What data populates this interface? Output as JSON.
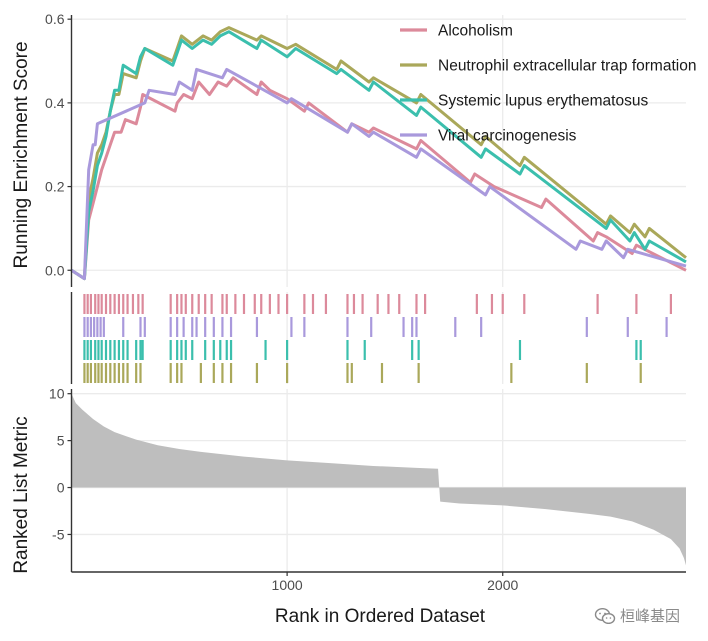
{
  "chart_data": {
    "type": "line",
    "title": "",
    "xlabel": "Rank in Ordered Dataset",
    "xlim": [
      0,
      2850
    ],
    "xticks": [
      1000,
      2000
    ],
    "top_panel": {
      "ylabel": "Running Enrichment Score",
      "ylim": [
        -0.04,
        0.61
      ],
      "yticks": [
        0.0,
        0.2,
        0.4,
        0.6
      ],
      "ytick_labels": [
        "0.0",
        "0.2",
        "0.4",
        "0.6"
      ],
      "legend_position": "top-right",
      "series": [
        {
          "name": "Alcoholism",
          "color": "#dc8a9b",
          "points": [
            [
              0,
              0
            ],
            [
              60,
              -0.02
            ],
            [
              80,
              0.12
            ],
            [
              100,
              0.16
            ],
            [
              120,
              0.2
            ],
            [
              140,
              0.24
            ],
            [
              160,
              0.27
            ],
            [
              180,
              0.3
            ],
            [
              200,
              0.33
            ],
            [
              230,
              0.33
            ],
            [
              250,
              0.36
            ],
            [
              300,
              0.35
            ],
            [
              320,
              0.39
            ],
            [
              330,
              0.42
            ],
            [
              480,
              0.38
            ],
            [
              490,
              0.4
            ],
            [
              520,
              0.42
            ],
            [
              560,
              0.41
            ],
            [
              590,
              0.45
            ],
            [
              640,
              0.42
            ],
            [
              680,
              0.45
            ],
            [
              720,
              0.44
            ],
            [
              750,
              0.46
            ],
            [
              860,
              0.42
            ],
            [
              880,
              0.45
            ],
            [
              920,
              0.43
            ],
            [
              1000,
              0.41
            ],
            [
              1080,
              0.38
            ],
            [
              1100,
              0.4
            ],
            [
              1280,
              0.33
            ],
            [
              1300,
              0.35
            ],
            [
              1380,
              0.33
            ],
            [
              1400,
              0.34
            ],
            [
              1600,
              0.29
            ],
            [
              1620,
              0.31
            ],
            [
              1850,
              0.21
            ],
            [
              1870,
              0.23
            ],
            [
              1960,
              0.2
            ],
            [
              2180,
              0.15
            ],
            [
              2200,
              0.17
            ],
            [
              2420,
              0.07
            ],
            [
              2440,
              0.09
            ],
            [
              2480,
              0.08
            ],
            [
              2600,
              0.04
            ],
            [
              2620,
              0.06
            ],
            [
              2850,
              0.0
            ]
          ]
        },
        {
          "name": "Neutrophil extracellular trap formation",
          "color": "#aaa85a",
          "points": [
            [
              0,
              0
            ],
            [
              60,
              -0.02
            ],
            [
              80,
              0.17
            ],
            [
              100,
              0.22
            ],
            [
              120,
              0.28
            ],
            [
              140,
              0.3
            ],
            [
              160,
              0.33
            ],
            [
              180,
              0.38
            ],
            [
              200,
              0.42
            ],
            [
              220,
              0.42
            ],
            [
              240,
              0.47
            ],
            [
              300,
              0.46
            ],
            [
              320,
              0.5
            ],
            [
              340,
              0.53
            ],
            [
              470,
              0.5
            ],
            [
              490,
              0.53
            ],
            [
              510,
              0.56
            ],
            [
              560,
              0.54
            ],
            [
              610,
              0.56
            ],
            [
              650,
              0.55
            ],
            [
              690,
              0.57
            ],
            [
              730,
              0.58
            ],
            [
              860,
              0.55
            ],
            [
              880,
              0.56
            ],
            [
              1000,
              0.53
            ],
            [
              1040,
              0.54
            ],
            [
              1230,
              0.48
            ],
            [
              1250,
              0.5
            ],
            [
              1380,
              0.45
            ],
            [
              1400,
              0.46
            ],
            [
              1600,
              0.4
            ],
            [
              1620,
              0.42
            ],
            [
              1900,
              0.3
            ],
            [
              1920,
              0.32
            ],
            [
              2080,
              0.25
            ],
            [
              2100,
              0.27
            ],
            [
              2480,
              0.11
            ],
            [
              2500,
              0.13
            ],
            [
              2590,
              0.09
            ],
            [
              2610,
              0.11
            ],
            [
              2660,
              0.08
            ],
            [
              2680,
              0.1
            ],
            [
              2850,
              0.03
            ]
          ]
        },
        {
          "name": "Systemic lupus erythematosus",
          "color": "#3bbfad",
          "points": [
            [
              0,
              0
            ],
            [
              60,
              -0.02
            ],
            [
              80,
              0.14
            ],
            [
              100,
              0.19
            ],
            [
              120,
              0.25
            ],
            [
              140,
              0.28
            ],
            [
              160,
              0.32
            ],
            [
              180,
              0.38
            ],
            [
              200,
              0.43
            ],
            [
              220,
              0.43
            ],
            [
              240,
              0.49
            ],
            [
              300,
              0.47
            ],
            [
              320,
              0.51
            ],
            [
              340,
              0.53
            ],
            [
              470,
              0.49
            ],
            [
              490,
              0.52
            ],
            [
              510,
              0.55
            ],
            [
              560,
              0.53
            ],
            [
              610,
              0.55
            ],
            [
              650,
              0.54
            ],
            [
              690,
              0.56
            ],
            [
              730,
              0.57
            ],
            [
              860,
              0.53
            ],
            [
              880,
              0.55
            ],
            [
              1000,
              0.51
            ],
            [
              1040,
              0.53
            ],
            [
              1230,
              0.47
            ],
            [
              1250,
              0.48
            ],
            [
              1380,
              0.43
            ],
            [
              1400,
              0.45
            ],
            [
              1600,
              0.37
            ],
            [
              1620,
              0.39
            ],
            [
              1900,
              0.27
            ],
            [
              1920,
              0.29
            ],
            [
              2080,
              0.23
            ],
            [
              2100,
              0.25
            ],
            [
              2480,
              0.1
            ],
            [
              2500,
              0.12
            ],
            [
              2590,
              0.07
            ],
            [
              2610,
              0.09
            ],
            [
              2660,
              0.05
            ],
            [
              2680,
              0.07
            ],
            [
              2850,
              0.02
            ]
          ]
        },
        {
          "name": "Viral carcinogenesis",
          "color": "#a999dc",
          "points": [
            [
              0,
              0
            ],
            [
              60,
              -0.02
            ],
            [
              80,
              0.24
            ],
            [
              100,
              0.3
            ],
            [
              110,
              0.3
            ],
            [
              120,
              0.35
            ],
            [
              340,
              0.4
            ],
            [
              360,
              0.43
            ],
            [
              480,
              0.42
            ],
            [
              500,
              0.45
            ],
            [
              560,
              0.43
            ],
            [
              580,
              0.48
            ],
            [
              700,
              0.46
            ],
            [
              720,
              0.48
            ],
            [
              1000,
              0.4
            ],
            [
              1020,
              0.41
            ],
            [
              1280,
              0.33
            ],
            [
              1300,
              0.35
            ],
            [
              1380,
              0.32
            ],
            [
              1400,
              0.33
            ],
            [
              1600,
              0.27
            ],
            [
              1620,
              0.29
            ],
            [
              1920,
              0.18
            ],
            [
              1940,
              0.2
            ],
            [
              2340,
              0.05
            ],
            [
              2360,
              0.07
            ],
            [
              2460,
              0.05
            ],
            [
              2480,
              0.07
            ],
            [
              2560,
              0.03
            ],
            [
              2580,
              0.05
            ],
            [
              2850,
              0.01
            ]
          ]
        }
      ]
    },
    "hits_panel": {
      "rows": [
        {
          "name": "Alcoholism",
          "color": "#dc8a9b",
          "positions": [
            60,
            75,
            90,
            110,
            125,
            140,
            160,
            180,
            200,
            220,
            240,
            260,
            285,
            310,
            330,
            460,
            490,
            510,
            530,
            560,
            590,
            620,
            650,
            700,
            720,
            760,
            800,
            850,
            880,
            920,
            960,
            1000,
            1080,
            1120,
            1180,
            1280,
            1310,
            1350,
            1420,
            1470,
            1520,
            1600,
            1640,
            1880,
            1950,
            2000,
            2100,
            2440,
            2620,
            2780
          ]
        },
        {
          "name": "Viral carcinogenesis",
          "color": "#a999dc",
          "positions": [
            60,
            75,
            90,
            105,
            120,
            135,
            150,
            240,
            320,
            340,
            460,
            490,
            520,
            560,
            580,
            620,
            660,
            700,
            740,
            860,
            1020,
            1080,
            1280,
            1390,
            1540,
            1580,
            1600,
            1780,
            1900,
            2390,
            2580,
            2760
          ]
        },
        {
          "name": "Systemic lupus erythematosus",
          "color": "#3bbfad",
          "positions": [
            60,
            75,
            90,
            110,
            125,
            140,
            160,
            180,
            200,
            220,
            240,
            260,
            300,
            320,
            330,
            460,
            490,
            510,
            530,
            560,
            620,
            660,
            690,
            720,
            740,
            900,
            1000,
            1280,
            1360,
            1580,
            1610,
            2080,
            2620,
            2640
          ]
        },
        {
          "name": "Neutrophil extracellular trap formation",
          "color": "#aaa85a",
          "positions": [
            60,
            75,
            90,
            110,
            125,
            140,
            160,
            180,
            200,
            220,
            240,
            260,
            300,
            320,
            460,
            490,
            510,
            600,
            660,
            700,
            740,
            860,
            1000,
            1280,
            1300,
            1440,
            1610,
            2040,
            2390,
            2640
          ]
        }
      ]
    },
    "bottom_panel": {
      "ylabel": "Ranked List Metric",
      "ylim": [
        -9,
        10.5
      ],
      "yticks": [
        -5,
        0,
        5,
        10
      ],
      "ytick_labels": [
        "-5",
        "0",
        "5",
        "10"
      ],
      "fill_color": "#bebebe",
      "metric_curve": [
        [
          0,
          10
        ],
        [
          20,
          9
        ],
        [
          50,
          8.3
        ],
        [
          100,
          7.3
        ],
        [
          150,
          6.5
        ],
        [
          200,
          5.9
        ],
        [
          300,
          5.1
        ],
        [
          400,
          4.5
        ],
        [
          500,
          4.1
        ],
        [
          600,
          3.8
        ],
        [
          800,
          3.3
        ],
        [
          1000,
          2.9
        ],
        [
          1200,
          2.6
        ],
        [
          1400,
          2.3
        ],
        [
          1600,
          2.1
        ],
        [
          1700,
          2.0
        ],
        [
          1710,
          -1.5
        ],
        [
          1800,
          -1.7
        ],
        [
          2000,
          -1.9
        ],
        [
          2200,
          -2.3
        ],
        [
          2400,
          -2.8
        ],
        [
          2500,
          -3.1
        ],
        [
          2600,
          -3.6
        ],
        [
          2700,
          -4.5
        ],
        [
          2780,
          -5.5
        ],
        [
          2820,
          -6.5
        ],
        [
          2840,
          -7.5
        ],
        [
          2850,
          -8.3
        ]
      ]
    }
  },
  "watermark": {
    "text": "桓峰基因",
    "logo": "wechat-logo"
  }
}
